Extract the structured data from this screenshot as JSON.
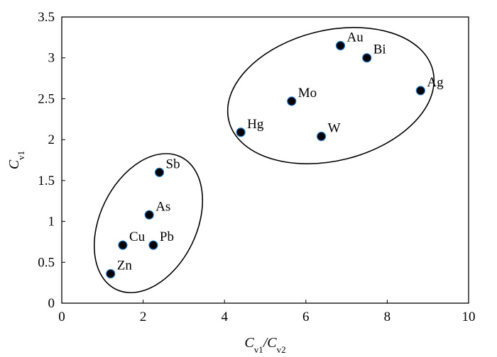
{
  "chart_data": {
    "type": "scatter",
    "title": "",
    "xlabel": "C_v1/C_v2",
    "ylabel": "C_v1",
    "xlim": [
      0,
      10
    ],
    "ylim": [
      0,
      3.5
    ],
    "xticks": [
      "0",
      "2",
      "4",
      "6",
      "8",
      "10"
    ],
    "yticks": [
      "0",
      "0.5",
      "1",
      "1.5",
      "2",
      "2.5",
      "3",
      "3.5"
    ],
    "grid": false,
    "series": [
      {
        "points": [
          {
            "label": "Au",
            "x": 6.85,
            "y": 3.15
          },
          {
            "label": "Bi",
            "x": 7.5,
            "y": 3.0
          },
          {
            "label": "Ag",
            "x": 8.82,
            "y": 2.6
          },
          {
            "label": "Mo",
            "x": 5.65,
            "y": 2.47
          },
          {
            "label": "Hg",
            "x": 4.4,
            "y": 2.09
          },
          {
            "label": "W",
            "x": 6.38,
            "y": 2.04
          },
          {
            "label": "Sb",
            "x": 2.4,
            "y": 1.6
          },
          {
            "label": "As",
            "x": 2.15,
            "y": 1.08
          },
          {
            "label": "Cu",
            "x": 1.5,
            "y": 0.71
          },
          {
            "label": "Pb",
            "x": 2.25,
            "y": 0.71
          },
          {
            "label": "Zn",
            "x": 1.2,
            "y": 0.36
          }
        ]
      }
    ],
    "groups": [
      {
        "members": [
          "Au",
          "Bi",
          "Ag",
          "Mo",
          "Hg",
          "W"
        ]
      },
      {
        "members": [
          "Sb",
          "As",
          "Cu",
          "Pb",
          "Zn"
        ]
      }
    ]
  }
}
